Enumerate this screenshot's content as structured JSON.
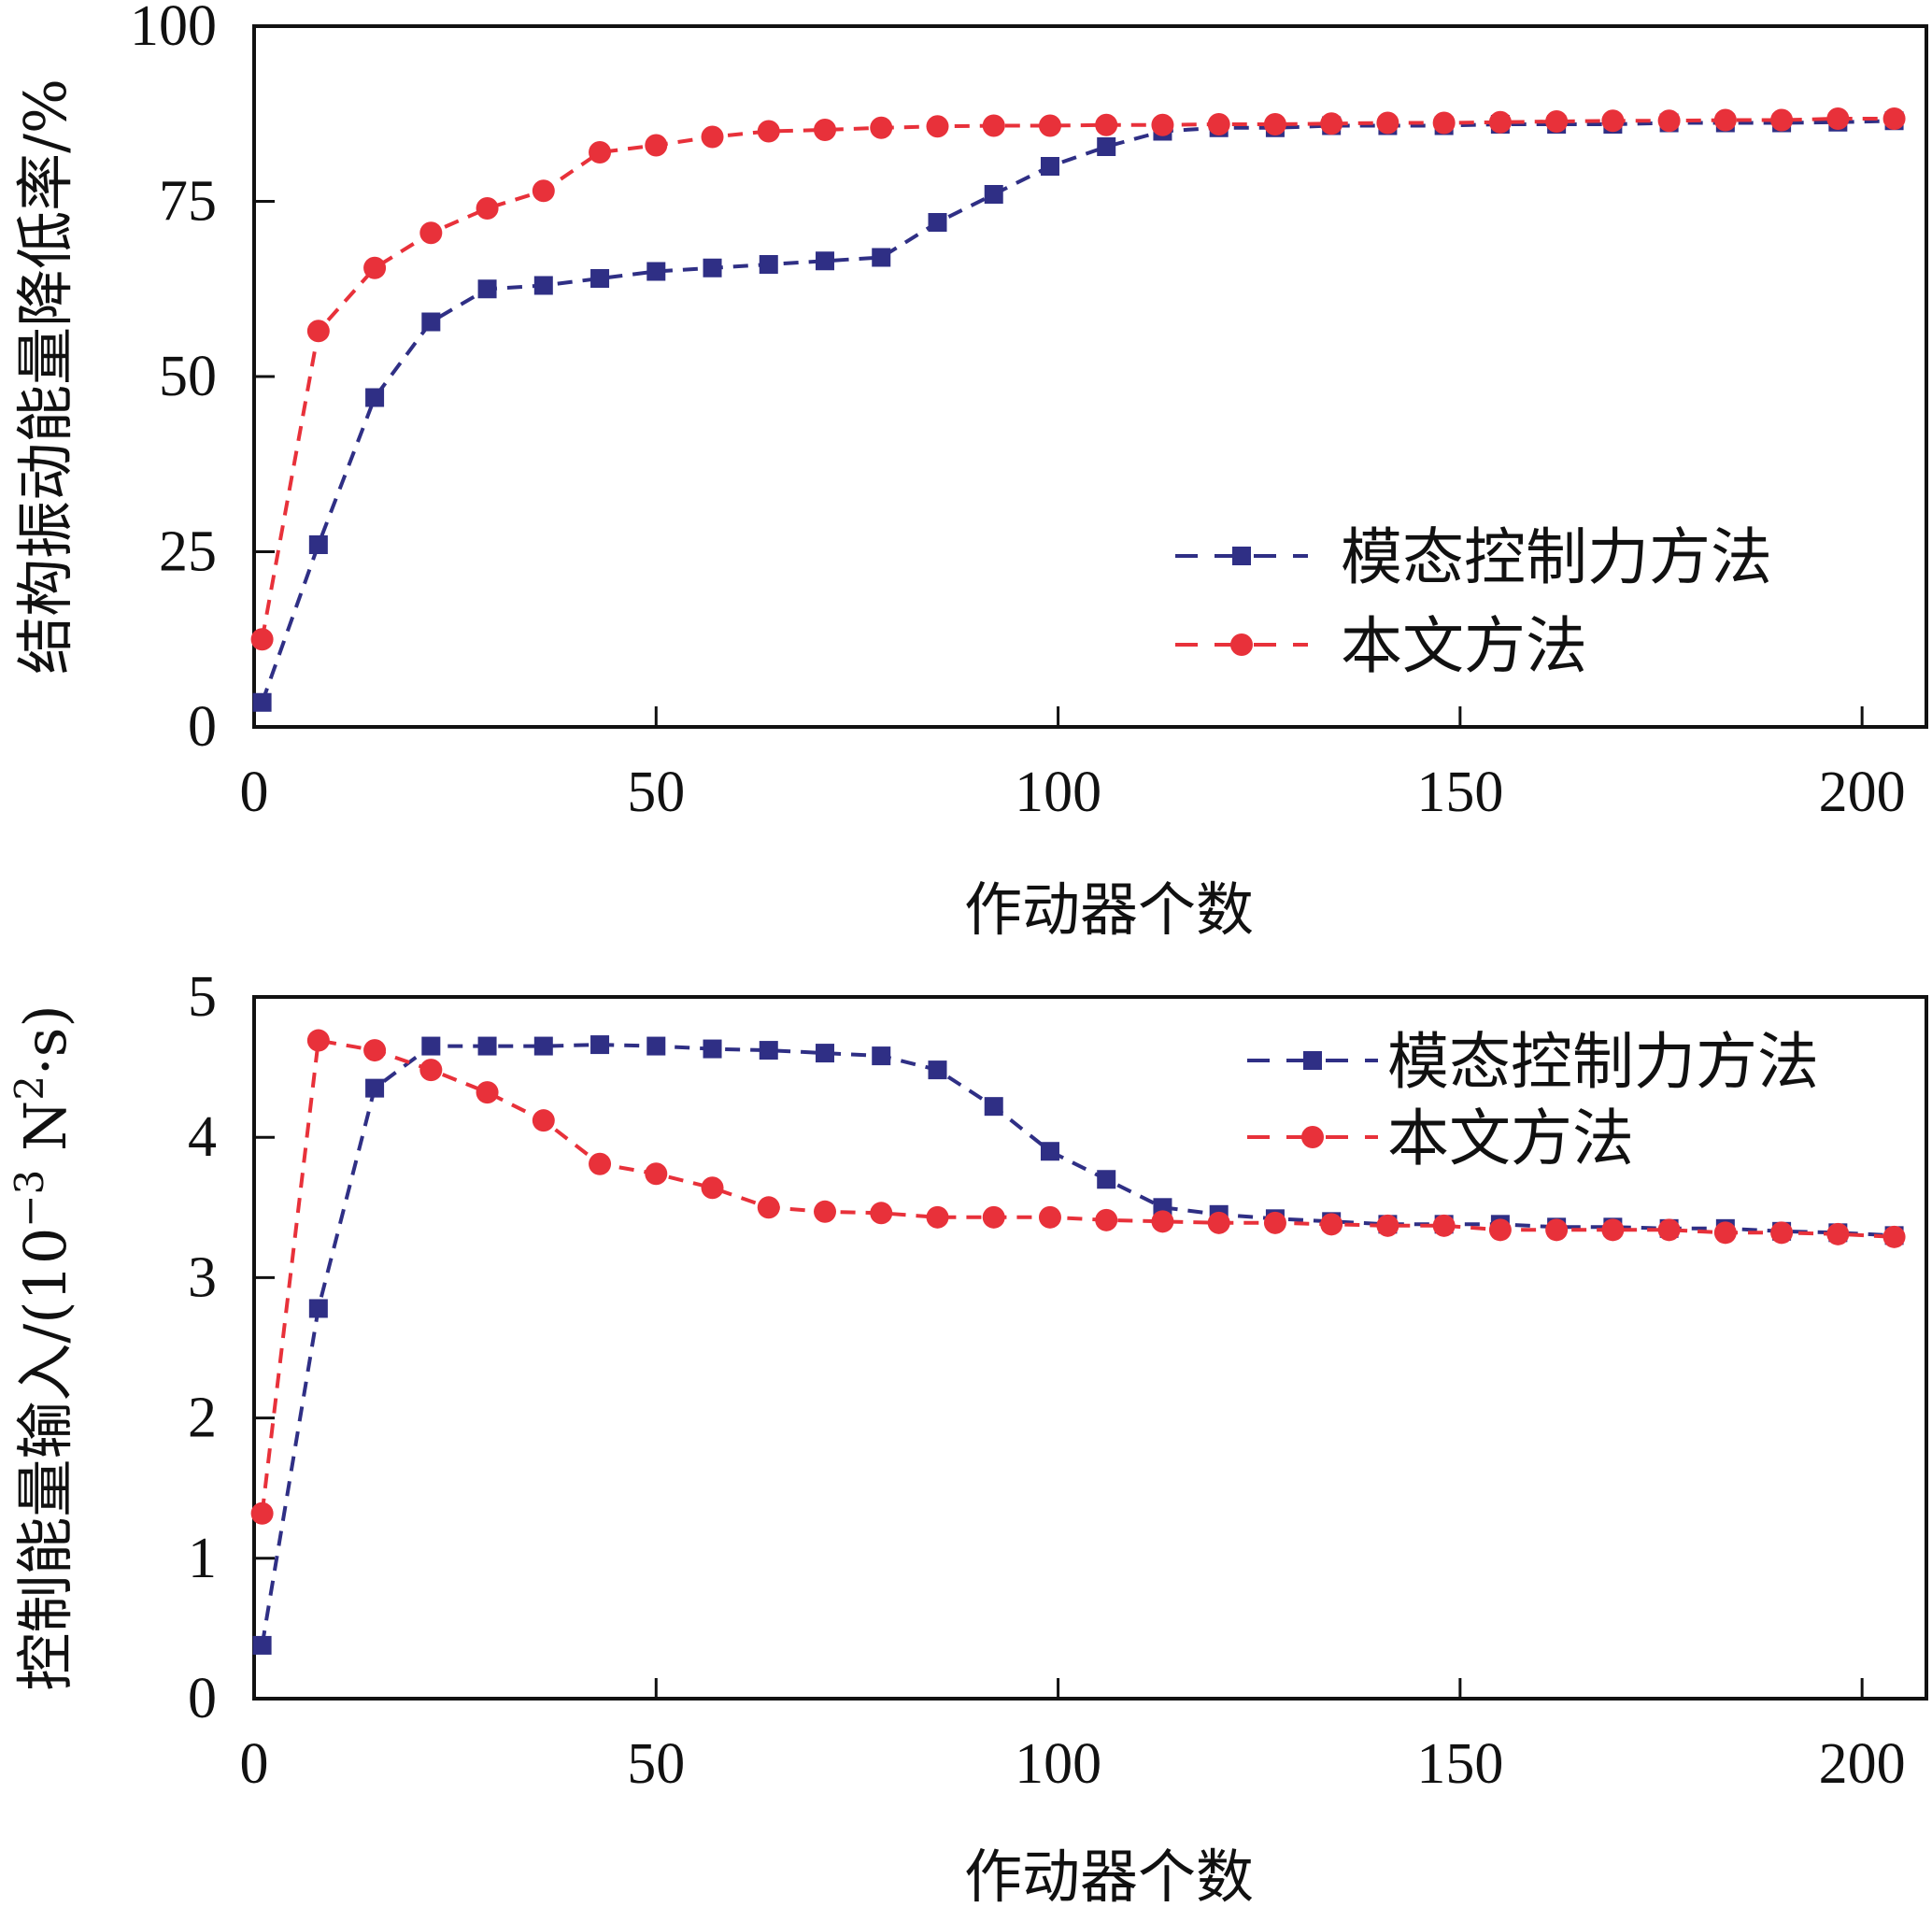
{
  "colors": {
    "series1": "#2f2f85",
    "series2": "#e8313a",
    "axis": "#111111"
  },
  "chart_data": [
    {
      "type": "line",
      "xlabel": "作动器个数",
      "ylabel": "结构振动能量降低率/%",
      "xlim": [
        0,
        208
      ],
      "ylim": [
        0,
        100
      ],
      "xticks": [
        "0",
        "50",
        "100",
        "150",
        "200"
      ],
      "yticks": [
        "0",
        "25",
        "50",
        "75",
        "100"
      ],
      "legend_position": "lower-right",
      "series": [
        {
          "name": "模态控制力方法",
          "color": "#2f2f85",
          "marker": "square",
          "x": [
            1,
            8,
            15,
            22,
            29,
            36,
            43,
            50,
            57,
            64,
            71,
            78,
            85,
            92,
            99,
            106,
            113,
            120,
            127,
            134,
            141,
            148,
            155,
            162,
            169,
            176,
            183,
            190,
            197,
            204
          ],
          "y": [
            3.5,
            26,
            47,
            57.8,
            62.5,
            63,
            64,
            65,
            65.5,
            66,
            66.5,
            67,
            72,
            76,
            80,
            82.8,
            85,
            85.5,
            85.5,
            85.8,
            85.8,
            85.8,
            86,
            86,
            86,
            86.2,
            86.2,
            86.2,
            86.3,
            86.5
          ]
        },
        {
          "name": "本文方法",
          "color": "#e8313a",
          "marker": "circle",
          "x": [
            1,
            8,
            15,
            22,
            29,
            36,
            43,
            50,
            57,
            64,
            71,
            78,
            85,
            92,
            99,
            106,
            113,
            120,
            127,
            134,
            141,
            148,
            155,
            162,
            169,
            176,
            183,
            190,
            197,
            204
          ],
          "y": [
            12.5,
            56.5,
            65.5,
            70.5,
            74,
            76.5,
            82,
            83,
            84.2,
            85,
            85.2,
            85.5,
            85.7,
            85.8,
            85.8,
            85.9,
            85.9,
            86,
            86,
            86.1,
            86.2,
            86.2,
            86.3,
            86.4,
            86.5,
            86.5,
            86.6,
            86.6,
            86.8,
            86.8
          ]
        }
      ]
    },
    {
      "type": "line",
      "xlabel": "作动器个数",
      "ylabel": "控制能量输入/(10",
      "ylabel_exp": "−3",
      "ylabel_unit": " N",
      "ylabel_exp2": "2",
      "ylabel_tail": "·s)",
      "xlim": [
        0,
        208
      ],
      "ylim": [
        0,
        5
      ],
      "xticks": [
        "0",
        "50",
        "100",
        "150",
        "200"
      ],
      "yticks": [
        "0",
        "1",
        "2",
        "3",
        "4",
        "5"
      ],
      "legend_position": "top-right",
      "series": [
        {
          "name": "模态控制力方法",
          "color": "#2f2f85",
          "marker": "square",
          "x": [
            1,
            8,
            15,
            22,
            29,
            36,
            43,
            50,
            57,
            64,
            71,
            78,
            85,
            92,
            99,
            106,
            113,
            120,
            127,
            134,
            141,
            148,
            155,
            162,
            169,
            176,
            183,
            190,
            197,
            204
          ],
          "y": [
            0.38,
            2.78,
            4.35,
            4.65,
            4.65,
            4.65,
            4.66,
            4.65,
            4.63,
            4.62,
            4.6,
            4.58,
            4.48,
            4.22,
            3.9,
            3.7,
            3.5,
            3.45,
            3.42,
            3.4,
            3.38,
            3.38,
            3.38,
            3.36,
            3.36,
            3.35,
            3.35,
            3.33,
            3.32,
            3.3
          ]
        },
        {
          "name": "本文方法",
          "color": "#e8313a",
          "marker": "circle",
          "x": [
            1,
            8,
            15,
            22,
            29,
            36,
            43,
            50,
            57,
            64,
            71,
            78,
            85,
            92,
            99,
            106,
            113,
            120,
            127,
            134,
            141,
            148,
            155,
            162,
            169,
            176,
            183,
            190,
            197,
            204
          ],
          "y": [
            1.32,
            4.69,
            4.62,
            4.48,
            4.32,
            4.12,
            3.81,
            3.74,
            3.64,
            3.5,
            3.47,
            3.46,
            3.43,
            3.43,
            3.43,
            3.41,
            3.4,
            3.39,
            3.39,
            3.38,
            3.37,
            3.37,
            3.34,
            3.34,
            3.34,
            3.34,
            3.32,
            3.32,
            3.31,
            3.29
          ]
        }
      ]
    }
  ]
}
